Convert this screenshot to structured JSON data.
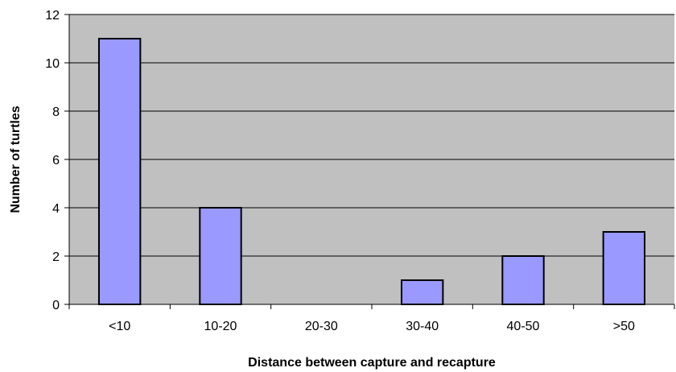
{
  "chart_data": {
    "type": "bar",
    "title": "",
    "xlabel": "Distance between capture and recapture",
    "ylabel": "Number of turtles",
    "categories": [
      "<10",
      "10-20",
      "20-30",
      "30-40",
      "40-50",
      ">50"
    ],
    "series": [
      {
        "values": [
          11,
          4,
          0,
          1,
          2,
          3
        ]
      }
    ],
    "ylim": [
      0,
      12
    ],
    "yticks": [
      "0",
      "2",
      "4",
      "6",
      "8",
      "10",
      "12"
    ],
    "grid": true,
    "legend": "none",
    "colors": {
      "bar_fill": "#9999ff",
      "bar_stroke": "#000000",
      "plot_background": "#c0c0c0",
      "gridline": "#000000"
    }
  }
}
